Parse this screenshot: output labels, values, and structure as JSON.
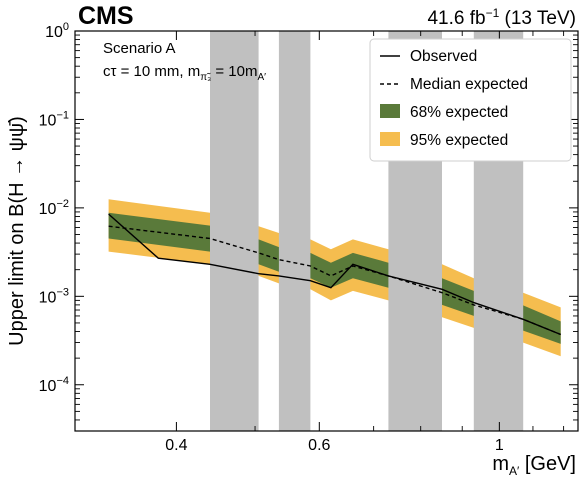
{
  "header": {
    "experiment": "CMS",
    "luminosity_prefix": "41.6 fb",
    "luminosity_exp": "−1",
    "energy": " (13 TeV)"
  },
  "annotation": {
    "line1": "Scenario A",
    "line2_a": "cτ = 10 mm, m",
    "line2_sub1": "π̃₃",
    "line2_b": " = 10m",
    "line2_sub2": "A′"
  },
  "axes": {
    "ylabel": "Upper limit on B(H → ψψ̄)",
    "xlabel_main": "m",
    "xlabel_sub": "A′",
    "xlabel_unit": " [GeV]",
    "y_ticks": [
      {
        "base": "10",
        "exp": "0",
        "value": 1
      },
      {
        "base": "10",
        "exp": "−1",
        "value": 0.1
      },
      {
        "base": "10",
        "exp": "−2",
        "value": 0.01
      },
      {
        "base": "10",
        "exp": "−3",
        "value": 0.001
      },
      {
        "base": "10",
        "exp": "−4",
        "value": 0.0001
      }
    ],
    "x_ticks": [
      {
        "label": "0.4",
        "value": 0.4
      },
      {
        "label": "0.6",
        "value": 0.6
      },
      {
        "label": "1",
        "value": 1.0
      }
    ]
  },
  "legend": {
    "observed": "Observed",
    "median": "Median expected",
    "band68": "68% expected",
    "band95": "95% expected"
  },
  "chart_data": {
    "type": "line",
    "x_scale": "log",
    "y_scale": "log",
    "xlim": [
      0.3,
      1.25
    ],
    "ylim": [
      3e-05,
      1
    ],
    "colors": {
      "band68": "#5a7a3a",
      "band95": "#f5bd4f",
      "veto": "#c0c0c0"
    },
    "veto_regions": [
      [
        0.44,
        0.505
      ],
      [
        0.535,
        0.585
      ],
      [
        0.73,
        0.85
      ],
      [
        0.93,
        1.07
      ]
    ],
    "series": [
      {
        "name": "Observed",
        "x": [
          0.33,
          0.38,
          0.44,
          0.505,
          0.535,
          0.585,
          0.62,
          0.66,
          0.73,
          0.85,
          0.93,
          1.07,
          1.19
        ],
        "y": [
          0.0085,
          0.0027,
          0.0023,
          0.0018,
          0.0017,
          0.0015,
          0.00125,
          0.0023,
          0.0017,
          0.0012,
          0.00085,
          0.00055,
          0.00037
        ]
      },
      {
        "name": "Median expected",
        "x": [
          0.33,
          0.44,
          0.505,
          0.535,
          0.585,
          0.62,
          0.66,
          0.73,
          0.85,
          0.93,
          1.07,
          1.19
        ],
        "y": [
          0.0062,
          0.0045,
          0.0031,
          0.0026,
          0.0022,
          0.0017,
          0.0022,
          0.0017,
          0.0011,
          0.0008,
          0.00055,
          0.00037
        ]
      },
      {
        "name": "68% expected",
        "x": [
          0.33,
          0.44,
          0.505,
          0.535,
          0.585,
          0.62,
          0.66,
          0.73,
          0.85,
          0.93,
          1.07,
          1.19
        ],
        "low": [
          0.0045,
          0.0032,
          0.0023,
          0.0019,
          0.0016,
          0.00125,
          0.0016,
          0.00125,
          0.0008,
          0.0006,
          0.00041,
          0.00029
        ],
        "high": [
          0.0088,
          0.0063,
          0.0044,
          0.0036,
          0.0031,
          0.0024,
          0.0031,
          0.0024,
          0.0016,
          0.00115,
          0.00079,
          0.00052
        ]
      },
      {
        "name": "95% expected",
        "x": [
          0.33,
          0.44,
          0.505,
          0.535,
          0.585,
          0.62,
          0.66,
          0.73,
          0.85,
          0.93,
          1.07,
          1.19
        ],
        "low": [
          0.0032,
          0.0023,
          0.0017,
          0.0014,
          0.0012,
          0.0009,
          0.00115,
          0.0009,
          0.00058,
          0.00044,
          0.0003,
          0.00021
        ],
        "high": [
          0.0125,
          0.0088,
          0.0062,
          0.0052,
          0.0044,
          0.0034,
          0.0044,
          0.0034,
          0.0023,
          0.0016,
          0.0011,
          0.00075
        ]
      }
    ]
  }
}
